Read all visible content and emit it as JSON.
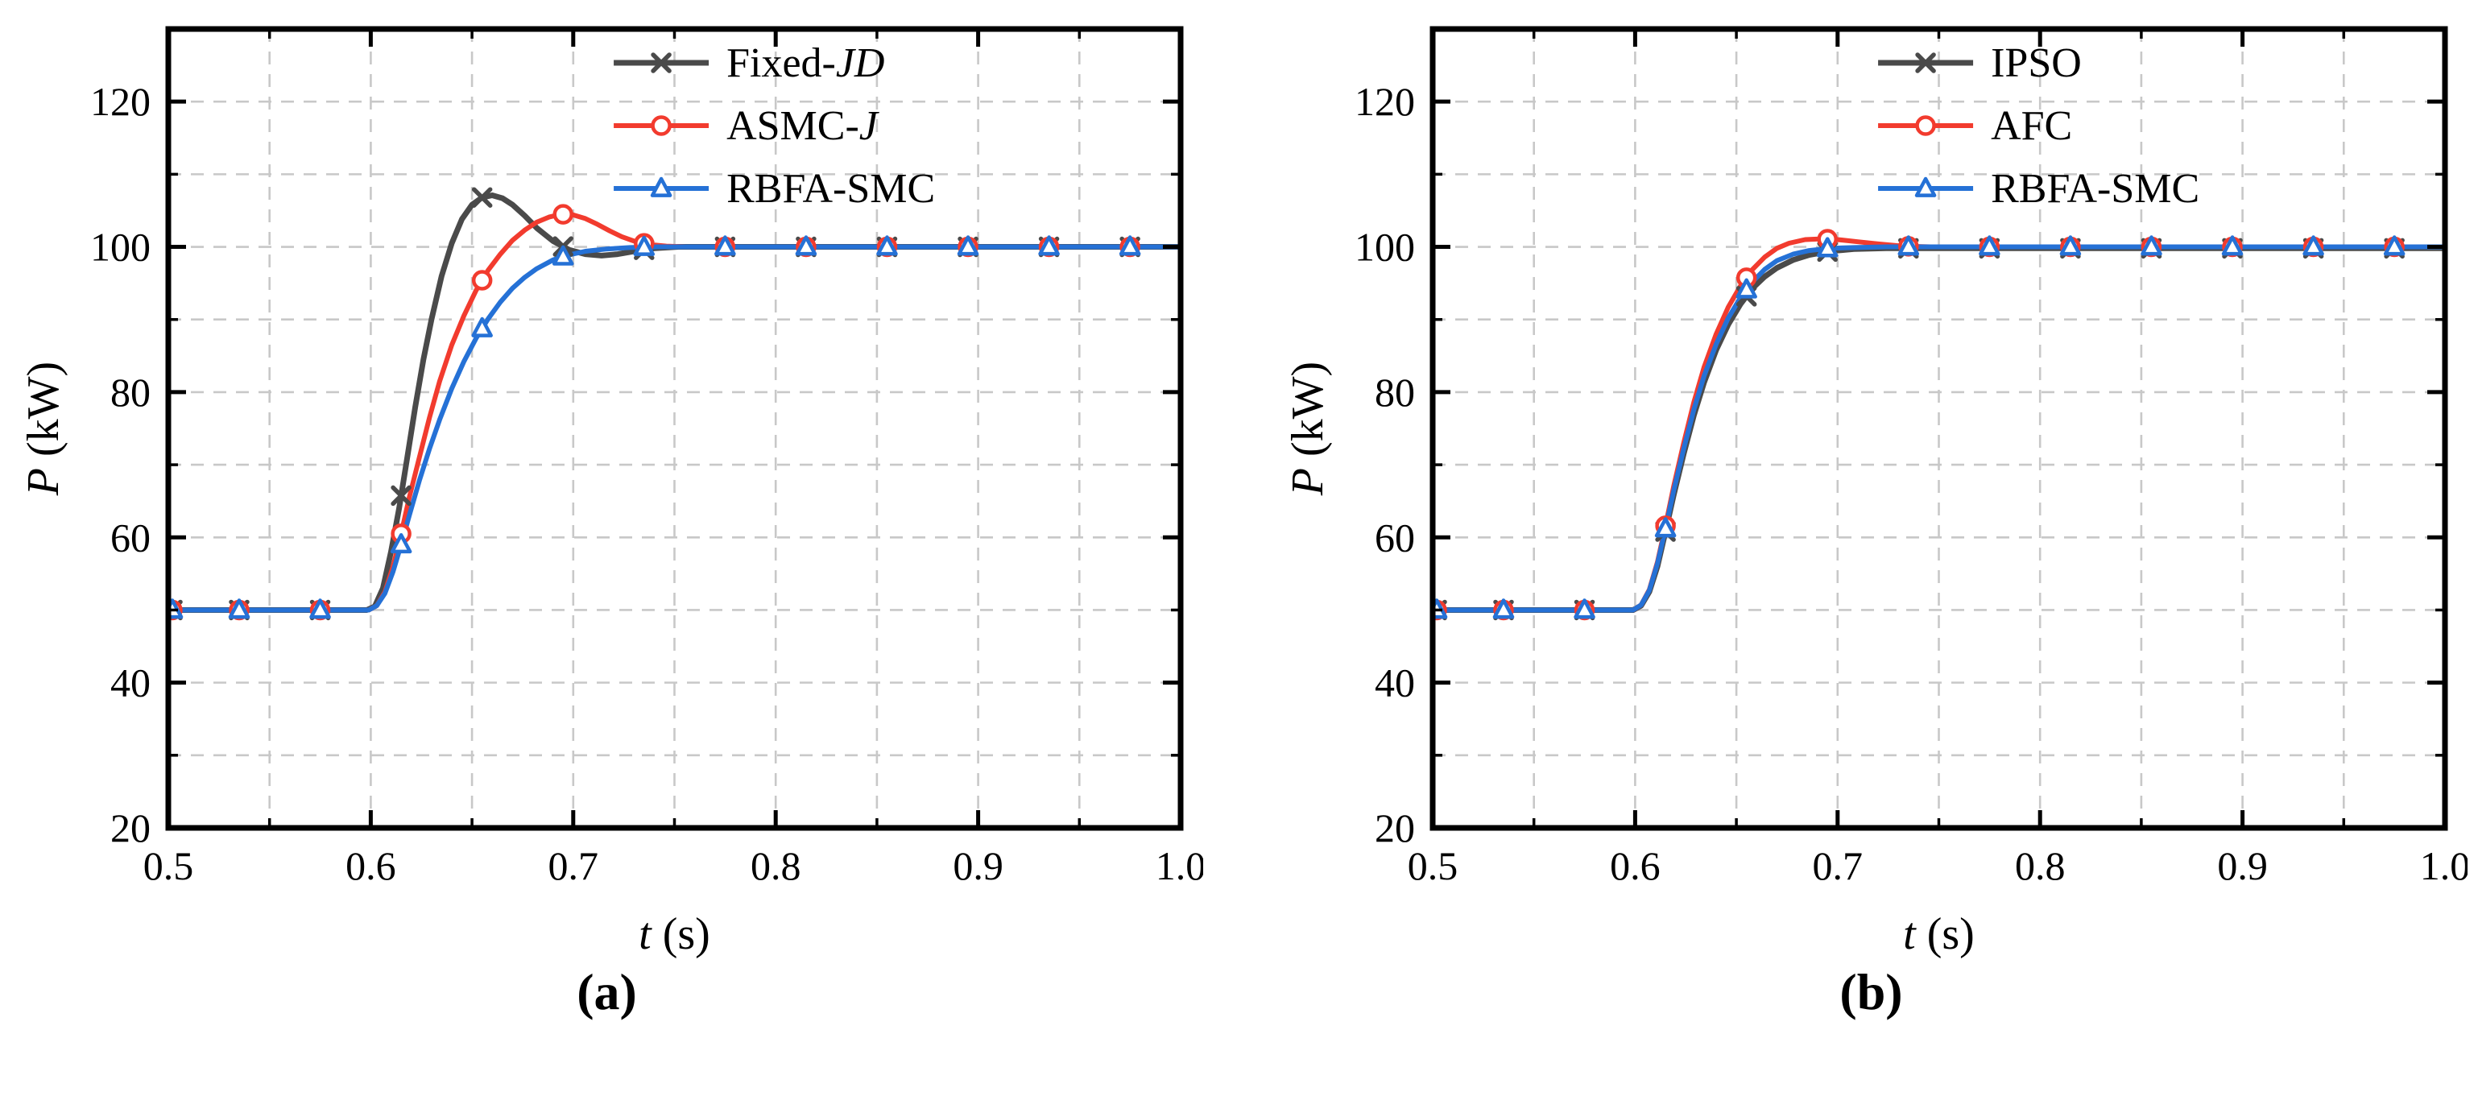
{
  "figure": {
    "background": "#ffffff",
    "text_color": "#000000",
    "frame_color": "#000000"
  },
  "chart_data": [
    {
      "type": "line",
      "caption": "(a)",
      "xlabel": "t (s)",
      "ylabel": "P (kW)",
      "xlabel_segments": [
        {
          "text": "t",
          "italic": true
        },
        {
          "text": " (s)",
          "italic": false
        }
      ],
      "ylabel_segments": [
        {
          "text": "P",
          "italic": true
        },
        {
          "text": " (kW)",
          "italic": false
        }
      ],
      "xlim": [
        0.5,
        1.0
      ],
      "ylim": [
        20,
        130
      ],
      "xticks": [
        0.5,
        0.6,
        0.7,
        0.8,
        0.9,
        1.0
      ],
      "yticks": [
        20,
        40,
        60,
        80,
        100,
        120
      ],
      "x_minor_step": 0.05,
      "y_minor_step": 10,
      "grid": {
        "color": "#c8c8c8",
        "dash": [
          16,
          12
        ],
        "on": true
      },
      "legend_position": "top-right-inside",
      "marker_t": [
        0.502,
        0.535,
        0.575,
        0.615,
        0.655,
        0.695,
        0.735,
        0.775,
        0.815,
        0.855,
        0.895,
        0.935,
        0.975
      ],
      "series": [
        {
          "name": "Fixed-JD",
          "label_segments": [
            {
              "text": "Fixed-",
              "italic": false
            },
            {
              "text": "JD",
              "italic": true
            }
          ],
          "color": "#4a4a4a",
          "marker": "x",
          "width": 7,
          "points": [
            [
              0.49,
              50
            ],
            [
              0.55,
              50
            ],
            [
              0.598,
              50
            ],
            [
              0.602,
              50.5
            ],
            [
              0.606,
              53
            ],
            [
              0.61,
              58
            ],
            [
              0.614,
              64
            ],
            [
              0.618,
              71
            ],
            [
              0.622,
              78
            ],
            [
              0.626,
              84.5
            ],
            [
              0.63,
              90
            ],
            [
              0.635,
              96
            ],
            [
              0.64,
              100.5
            ],
            [
              0.645,
              103.8
            ],
            [
              0.65,
              105.8
            ],
            [
              0.655,
              106.8
            ],
            [
              0.66,
              107.1
            ],
            [
              0.665,
              106.7
            ],
            [
              0.67,
              105.8
            ],
            [
              0.676,
              104.3
            ],
            [
              0.682,
              102.6
            ],
            [
              0.69,
              100.8
            ],
            [
              0.698,
              99.6
            ],
            [
              0.706,
              99.0
            ],
            [
              0.714,
              98.8
            ],
            [
              0.722,
              99.0
            ],
            [
              0.73,
              99.4
            ],
            [
              0.74,
              99.8
            ],
            [
              0.752,
              100
            ],
            [
              0.8,
              100
            ],
            [
              1.0,
              100
            ]
          ]
        },
        {
          "name": "ASMC-J",
          "label_segments": [
            {
              "text": "ASMC-",
              "italic": false
            },
            {
              "text": "J",
              "italic": true
            }
          ],
          "color": "#f23b2e",
          "marker": "circle",
          "width": 6,
          "points": [
            [
              0.49,
              50
            ],
            [
              0.55,
              50
            ],
            [
              0.599,
              50
            ],
            [
              0.603,
              50.6
            ],
            [
              0.607,
              52.5
            ],
            [
              0.611,
              56
            ],
            [
              0.615,
              60.5
            ],
            [
              0.619,
              65.5
            ],
            [
              0.624,
              71
            ],
            [
              0.629,
              76.5
            ],
            [
              0.634,
              81.5
            ],
            [
              0.64,
              86.5
            ],
            [
              0.646,
              90.5
            ],
            [
              0.652,
              94
            ],
            [
              0.658,
              96.8
            ],
            [
              0.664,
              99
            ],
            [
              0.67,
              100.9
            ],
            [
              0.676,
              102.3
            ],
            [
              0.682,
              103.4
            ],
            [
              0.688,
              104.1
            ],
            [
              0.694,
              104.5
            ],
            [
              0.7,
              104.4
            ],
            [
              0.706,
              103.9
            ],
            [
              0.712,
              103.1
            ],
            [
              0.718,
              102.2
            ],
            [
              0.724,
              101.4
            ],
            [
              0.73,
              100.8
            ],
            [
              0.738,
              100.3
            ],
            [
              0.746,
              100.1
            ],
            [
              0.756,
              100
            ],
            [
              1.0,
              100
            ]
          ]
        },
        {
          "name": "RBFA-SMC",
          "label_segments": [
            {
              "text": "RBFA-SMC",
              "italic": false
            }
          ],
          "color": "#2571d6",
          "marker": "triangle",
          "width": 6,
          "points": [
            [
              0.49,
              50
            ],
            [
              0.55,
              50
            ],
            [
              0.599,
              50
            ],
            [
              0.603,
              50.6
            ],
            [
              0.607,
              52.3
            ],
            [
              0.611,
              55.3
            ],
            [
              0.615,
              59
            ],
            [
              0.619,
              63
            ],
            [
              0.624,
              67.8
            ],
            [
              0.629,
              72.2
            ],
            [
              0.634,
              76.2
            ],
            [
              0.64,
              80.5
            ],
            [
              0.646,
              84.2
            ],
            [
              0.652,
              87.4
            ],
            [
              0.658,
              90.1
            ],
            [
              0.664,
              92.4
            ],
            [
              0.67,
              94.3
            ],
            [
              0.676,
              95.8
            ],
            [
              0.682,
              97.0
            ],
            [
              0.69,
              98.2
            ],
            [
              0.698,
              98.9
            ],
            [
              0.706,
              99.4
            ],
            [
              0.716,
              99.7
            ],
            [
              0.728,
              99.9
            ],
            [
              0.742,
              100
            ],
            [
              1.0,
              100
            ]
          ]
        }
      ]
    },
    {
      "type": "line",
      "caption": "(b)",
      "xlabel": "t (s)",
      "ylabel": "P (kW)",
      "xlabel_segments": [
        {
          "text": "t",
          "italic": true
        },
        {
          "text": " (s)",
          "italic": false
        }
      ],
      "ylabel_segments": [
        {
          "text": "P",
          "italic": true
        },
        {
          "text": " (kW)",
          "italic": false
        }
      ],
      "xlim": [
        0.5,
        1.0
      ],
      "ylim": [
        20,
        130
      ],
      "xticks": [
        0.5,
        0.6,
        0.7,
        0.8,
        0.9,
        1.0
      ],
      "yticks": [
        20,
        40,
        60,
        80,
        100,
        120
      ],
      "x_minor_step": 0.05,
      "y_minor_step": 10,
      "grid": {
        "color": "#c8c8c8",
        "dash": [
          16,
          12
        ],
        "on": true
      },
      "legend_position": "top-right-inside",
      "marker_t": [
        0.502,
        0.535,
        0.575,
        0.615,
        0.655,
        0.695,
        0.735,
        0.775,
        0.815,
        0.855,
        0.895,
        0.935,
        0.975
      ],
      "series": [
        {
          "name": "IPSO",
          "label_segments": [
            {
              "text": "IPSO",
              "italic": false
            }
          ],
          "color": "#4a4a4a",
          "marker": "x",
          "width": 7,
          "points": [
            [
              0.49,
              50
            ],
            [
              0.55,
              50
            ],
            [
              0.599,
              50
            ],
            [
              0.603,
              50.6
            ],
            [
              0.607,
              52.5
            ],
            [
              0.611,
              56
            ],
            [
              0.615,
              60.8
            ],
            [
              0.619,
              65.8
            ],
            [
              0.624,
              71.5
            ],
            [
              0.629,
              76.8
            ],
            [
              0.634,
              81.3
            ],
            [
              0.64,
              85.8
            ],
            [
              0.646,
              89.3
            ],
            [
              0.652,
              92.1
            ],
            [
              0.658,
              94.3
            ],
            [
              0.664,
              95.9
            ],
            [
              0.67,
              97.1
            ],
            [
              0.678,
              98.2
            ],
            [
              0.686,
              98.9
            ],
            [
              0.696,
              99.4
            ],
            [
              0.708,
              99.7
            ],
            [
              0.724,
              99.8
            ],
            [
              0.75,
              99.8
            ],
            [
              1.0,
              99.8
            ]
          ]
        },
        {
          "name": "AFC",
          "label_segments": [
            {
              "text": "AFC",
              "italic": false
            }
          ],
          "color": "#f23b2e",
          "marker": "circle",
          "width": 6,
          "points": [
            [
              0.49,
              50
            ],
            [
              0.55,
              50
            ],
            [
              0.599,
              50
            ],
            [
              0.603,
              50.7
            ],
            [
              0.607,
              52.8
            ],
            [
              0.611,
              56.6
            ],
            [
              0.615,
              61.6
            ],
            [
              0.619,
              67
            ],
            [
              0.624,
              73
            ],
            [
              0.629,
              78.6
            ],
            [
              0.634,
              83.4
            ],
            [
              0.64,
              88
            ],
            [
              0.646,
              91.7
            ],
            [
              0.652,
              94.6
            ],
            [
              0.658,
              96.9
            ],
            [
              0.664,
              98.6
            ],
            [
              0.67,
              99.8
            ],
            [
              0.676,
              100.5
            ],
            [
              0.684,
              101.0
            ],
            [
              0.692,
              101.1
            ],
            [
              0.7,
              101.0
            ],
            [
              0.71,
              100.7
            ],
            [
              0.72,
              100.4
            ],
            [
              0.732,
              100.1
            ],
            [
              0.746,
              100
            ],
            [
              1.0,
              100
            ]
          ]
        },
        {
          "name": "RBFA-SMC",
          "label_segments": [
            {
              "text": "RBFA-SMC",
              "italic": false
            }
          ],
          "color": "#2571d6",
          "marker": "triangle",
          "width": 6,
          "points": [
            [
              0.49,
              50
            ],
            [
              0.55,
              50
            ],
            [
              0.599,
              50
            ],
            [
              0.603,
              50.7
            ],
            [
              0.607,
              52.7
            ],
            [
              0.611,
              56.4
            ],
            [
              0.615,
              61.2
            ],
            [
              0.619,
              66.4
            ],
            [
              0.624,
              72.2
            ],
            [
              0.629,
              77.6
            ],
            [
              0.634,
              82.2
            ],
            [
              0.64,
              86.6
            ],
            [
              0.646,
              90.2
            ],
            [
              0.652,
              93.0
            ],
            [
              0.658,
              95.2
            ],
            [
              0.664,
              96.9
            ],
            [
              0.67,
              98.1
            ],
            [
              0.678,
              99.0
            ],
            [
              0.686,
              99.5
            ],
            [
              0.696,
              99.8
            ],
            [
              0.708,
              99.9
            ],
            [
              0.724,
              100
            ],
            [
              1.0,
              100
            ]
          ]
        }
      ]
    }
  ]
}
